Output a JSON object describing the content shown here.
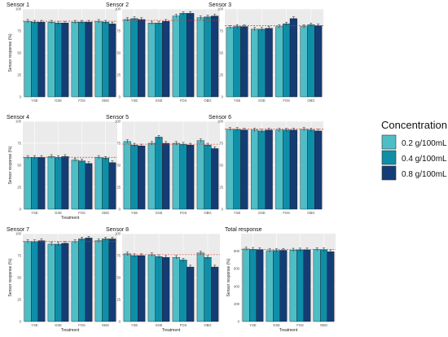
{
  "figure": {
    "legend": {
      "title": "Concentration",
      "entries": [
        "0.2 g/100mL",
        "0.4 g/100mL",
        "0.8 g/100mL"
      ],
      "colors": [
        "#4fbdc6",
        "#0f8ea8",
        "#143d76"
      ]
    }
  },
  "chart_data": [
    {
      "type": "bar",
      "title": "Sensor 1",
      "ylabel": "Sensor response (%)",
      "xlabel": "",
      "ylim": [
        0,
        100
      ],
      "yticks": [
        0,
        25,
        50,
        75,
        100
      ],
      "grid": true,
      "categories": [
        "YSE",
        "GSE",
        "FOS",
        "OBG"
      ],
      "series": [
        {
          "name": "0.2 g/100mL",
          "values": [
            86,
            85,
            85,
            86
          ]
        },
        {
          "name": "0.4 g/100mL",
          "values": [
            85,
            84,
            85,
            85
          ]
        },
        {
          "name": "0.8 g/100mL",
          "values": [
            85,
            84,
            85,
            83
          ]
        }
      ],
      "reference_line": 86
    },
    {
      "type": "bar",
      "title": "Sensor 2",
      "ylabel": "",
      "xlabel": "",
      "ylim": [
        0,
        100
      ],
      "yticks": [
        0,
        25,
        50,
        75,
        100
      ],
      "grid": true,
      "categories": [
        "YSE",
        "GSE",
        "FOS",
        "OBG"
      ],
      "series": [
        {
          "name": "0.2 g/100mL",
          "values": [
            88,
            84,
            92,
            90
          ]
        },
        {
          "name": "0.4 g/100mL",
          "values": [
            89,
            84,
            95,
            91
          ]
        },
        {
          "name": "0.8 g/100mL",
          "values": [
            88,
            86,
            95,
            92
          ]
        }
      ],
      "reference_line": 87
    },
    {
      "type": "bar",
      "title": "Sensor 3",
      "ylabel": "",
      "xlabel": "",
      "ylim": [
        0,
        100
      ],
      "yticks": [
        0,
        25,
        50,
        75,
        100
      ],
      "grid": true,
      "categories": [
        "YSE",
        "GSE",
        "FOS",
        "OBG"
      ],
      "series": [
        {
          "name": "0.2 g/100mL",
          "values": [
            79,
            77,
            80,
            80
          ]
        },
        {
          "name": "0.4 g/100mL",
          "values": [
            80,
            77,
            83,
            82
          ]
        },
        {
          "name": "0.8 g/100mL",
          "values": [
            80,
            78,
            89,
            81
          ]
        }
      ],
      "reference_line": 81
    },
    {
      "type": "bar",
      "title": "Sensor 4",
      "ylabel": "Sensor response (%)",
      "xlabel": "Treatment",
      "ylim": [
        0,
        100
      ],
      "yticks": [
        0,
        25,
        50,
        75,
        100
      ],
      "grid": true,
      "categories": [
        "YSE",
        "GSE",
        "FOS",
        "OBG"
      ],
      "series": [
        {
          "name": "0.2 g/100mL",
          "values": [
            59,
            60,
            56,
            59
          ]
        },
        {
          "name": "0.4 g/100mL",
          "values": [
            59,
            59,
            55,
            58
          ]
        },
        {
          "name": "0.8 g/100mL",
          "values": [
            59,
            60,
            52,
            53
          ]
        }
      ],
      "reference_line": 59
    },
    {
      "type": "bar",
      "title": "Sensor 5",
      "ylabel": "",
      "xlabel": "",
      "ylim": [
        0,
        100
      ],
      "yticks": [
        0,
        25,
        50,
        75,
        100
      ],
      "grid": true,
      "categories": [
        "YSE",
        "GSE",
        "FOS",
        "OBG"
      ],
      "series": [
        {
          "name": "0.2 g/100mL",
          "values": [
            77,
            75,
            75,
            78
          ]
        },
        {
          "name": "0.4 g/100mL",
          "values": [
            73,
            82,
            74,
            73
          ]
        },
        {
          "name": "0.8 g/100mL",
          "values": [
            72,
            75,
            73,
            69
          ]
        }
      ],
      "reference_line": 74
    },
    {
      "type": "bar",
      "title": "Sensor 6",
      "ylabel": "",
      "xlabel": "",
      "ylim": [
        0,
        100
      ],
      "yticks": [
        0,
        25,
        50,
        75,
        100
      ],
      "grid": true,
      "categories": [
        "YSE",
        "GSE",
        "FOS",
        "OBG"
      ],
      "series": [
        {
          "name": "0.2 g/100mL",
          "values": [
            91,
            90,
            90,
            91
          ]
        },
        {
          "name": "0.4 g/100mL",
          "values": [
            91,
            89,
            90,
            90
          ]
        },
        {
          "name": "0.8 g/100mL",
          "values": [
            90,
            90,
            90,
            89
          ]
        }
      ],
      "reference_line": 91
    },
    {
      "type": "bar",
      "title": "Sensor 7",
      "ylabel": "Sensor response (%)",
      "xlabel": "Treatment",
      "ylim": [
        0,
        100
      ],
      "yticks": [
        0,
        25,
        50,
        75,
        100
      ],
      "grid": true,
      "categories": [
        "YSE",
        "GSE",
        "FOS",
        "OBG"
      ],
      "series": [
        {
          "name": "0.2 g/100mL",
          "values": [
            91,
            88,
            91,
            92
          ]
        },
        {
          "name": "0.4 g/100mL",
          "values": [
            91,
            88,
            94,
            94
          ]
        },
        {
          "name": "0.8 g/100mL",
          "values": [
            92,
            89,
            95,
            94
          ]
        }
      ],
      "reference_line": 91
    },
    {
      "type": "bar",
      "title": "Sensor 8",
      "ylabel": "",
      "xlabel": "Treatment",
      "ylim": [
        0,
        100
      ],
      "yticks": [
        0,
        25,
        50,
        75,
        100
      ],
      "grid": true,
      "categories": [
        "YSE",
        "GSE",
        "FOS",
        "OBG"
      ],
      "series": [
        {
          "name": "0.2 g/100mL",
          "values": [
            77,
            76,
            73,
            78
          ]
        },
        {
          "name": "0.4 g/100mL",
          "values": [
            75,
            74,
            70,
            73
          ]
        },
        {
          "name": "0.8 g/100mL",
          "values": [
            75,
            73,
            62,
            62
          ]
        }
      ],
      "reference_line": 76
    },
    {
      "type": "bar",
      "title": "Total response",
      "ylabel": "Sensor response (%)",
      "xlabel": "Treatment",
      "ylim": [
        0,
        1000
      ],
      "yticks": [
        0,
        200,
        400,
        600,
        800
      ],
      "grid": true,
      "categories": [
        "YSE",
        "GSE",
        "FOS",
        "OBG"
      ],
      "series": [
        {
          "name": "0.2 g/100mL",
          "values": [
            825,
            806,
            813,
            820
          ]
        },
        {
          "name": "0.4 g/100mL",
          "values": [
            822,
            808,
            815,
            816
          ]
        },
        {
          "name": "0.8 g/100mL",
          "values": [
            818,
            810,
            815,
            795
          ]
        }
      ],
      "reference_line": 820
    }
  ]
}
